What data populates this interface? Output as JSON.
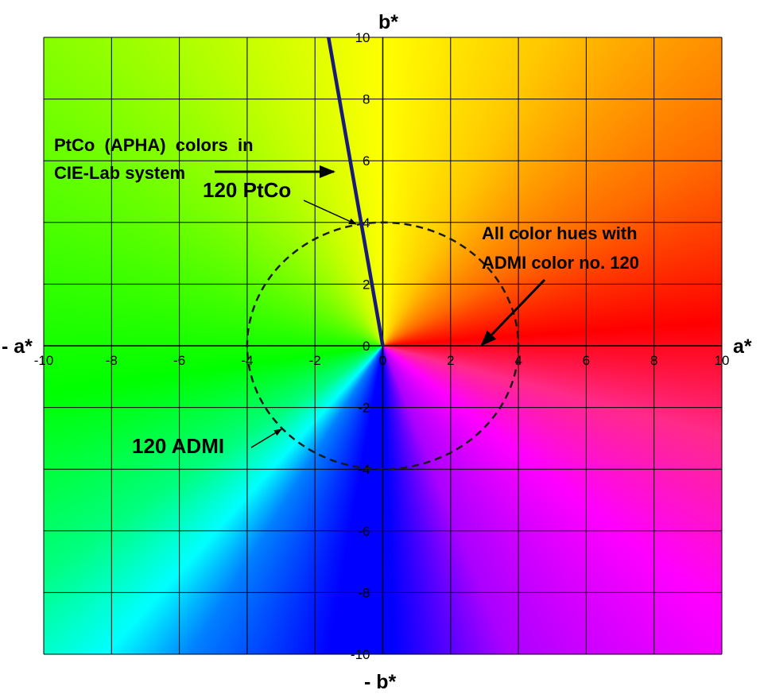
{
  "chart_data": {
    "type": "scatter",
    "title": "",
    "xlabel_pos": "a*",
    "xlabel_neg": "- a*",
    "ylabel_pos": "b*",
    "ylabel_neg": "- b*",
    "xlim": [
      -10,
      10
    ],
    "ylim": [
      -10,
      10
    ],
    "xticks": [
      -10,
      -8,
      -6,
      -4,
      -2,
      0,
      2,
      4,
      6,
      8,
      10
    ],
    "yticks": [
      -10,
      -8,
      -6,
      -4,
      -2,
      0,
      2,
      4,
      6,
      8,
      10
    ],
    "grid": true,
    "background": "CIE-Lab hue wheel centered at origin",
    "ptco_line": {
      "x": [
        0,
        -1.6
      ],
      "y": [
        0,
        10
      ],
      "color": "#1a1a7a"
    },
    "admi_circle": {
      "cx": 0,
      "cy": 0,
      "r": 4,
      "style": "dashed"
    },
    "annotations": [
      {
        "id": "ptco_title",
        "lines": [
          "PtCo  (APHA)  colors  in",
          "CIE-Lab system"
        ]
      },
      {
        "id": "ptco_point",
        "text": "120 PtCo"
      },
      {
        "id": "admi_hues",
        "lines": [
          "All color hues with",
          "ADMI color no. 120"
        ]
      },
      {
        "id": "admi_label",
        "text": "120 ADMI"
      }
    ]
  }
}
